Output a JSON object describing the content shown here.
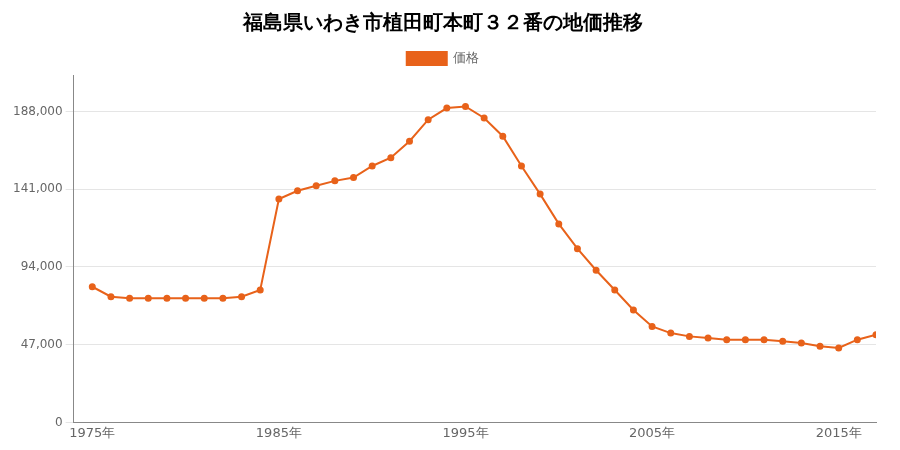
{
  "chart_data": {
    "type": "line",
    "title": "福島県いわき市植田町本町３２番の地価推移",
    "background_color": "#ffffff",
    "x": [
      1975,
      1976,
      1977,
      1978,
      1979,
      1980,
      1981,
      1982,
      1983,
      1984,
      1985,
      1986,
      1987,
      1988,
      1989,
      1990,
      1991,
      1992,
      1993,
      1994,
      1995,
      1996,
      1997,
      1998,
      1999,
      2000,
      2001,
      2002,
      2003,
      2004,
      2005,
      2006,
      2007,
      2008,
      2009,
      2010,
      2011,
      2012,
      2013,
      2014,
      2015,
      2016,
      2017
    ],
    "series": [
      {
        "name": "価格",
        "color": "#E8621A",
        "marker": "circle",
        "line_style": "solid",
        "values": [
          82000,
          76000,
          75000,
          75000,
          75000,
          75000,
          75000,
          75000,
          76000,
          80000,
          135000,
          140000,
          143000,
          146000,
          148000,
          155000,
          160000,
          170000,
          183000,
          190000,
          191000,
          184000,
          173000,
          155000,
          138000,
          120000,
          105000,
          92000,
          80000,
          68000,
          58000,
          54000,
          52000,
          51000,
          50000,
          50000,
          50000,
          49000,
          48000,
          46000,
          45000,
          50000,
          53000
        ]
      }
    ],
    "xlim": [
      1974,
      2017
    ],
    "xticks": [
      {
        "value": 1975,
        "label": "1975年"
      },
      {
        "value": 1985,
        "label": "1985年"
      },
      {
        "value": 1995,
        "label": "1995年"
      },
      {
        "value": 2005,
        "label": "2005年"
      },
      {
        "value": 2015,
        "label": "2015年"
      }
    ],
    "ylim": [
      0,
      210000
    ],
    "yticks": [
      0,
      {
        "value": 47000,
        "label": "47,000"
      },
      {
        "value": 94000,
        "label": "94,000"
      },
      {
        "value": 141000,
        "label": "141,000"
      },
      {
        "value": 188000,
        "label": "188,000"
      }
    ],
    "grid": "y",
    "legend": "top"
  }
}
